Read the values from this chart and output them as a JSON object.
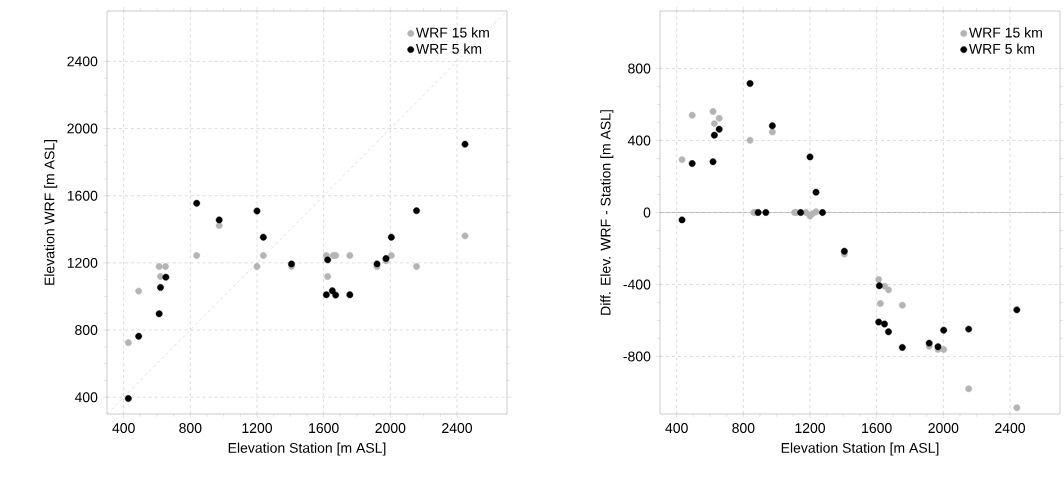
{
  "chart_data": [
    {
      "type": "scatter",
      "xlabel": "Elevation Station [m ASL]",
      "ylabel": "Elevation WRF [m ASL]",
      "xlim": [
        300,
        2700
      ],
      "ylim": [
        300,
        2700
      ],
      "xticks": [
        400,
        800,
        1200,
        1600,
        2000,
        2400
      ],
      "yticks": [
        400,
        800,
        1200,
        1600,
        2000,
        2400
      ],
      "grid": true,
      "legend": "top right",
      "series": [
        {
          "name": "WRF 15 km",
          "color": "#b4b4b4",
          "marker": "circle",
          "x": [
            428,
            490,
            613,
            651,
            621,
            838,
            973,
            1200,
            1238,
            1407,
            1616,
            1624,
            1658,
            1672,
            1757,
            1920,
            1974,
            2006,
            2157,
            2448
          ],
          "values": [
            725,
            1032,
            1178,
            1178,
            1119,
            1244,
            1422,
            1178,
            1244,
            1178,
            1244,
            1119,
            1244,
            1244,
            1244,
            1178,
            1212,
            1244,
            1178,
            1361
          ]
        },
        {
          "name": "WRF 5 km",
          "color": "#000000",
          "marker": "circle",
          "x": [
            428,
            490,
            613,
            621,
            653,
            838,
            973,
            1200,
            1238,
            1407,
            1616,
            1624,
            1652,
            1672,
            1757,
            1920,
            1974,
            2006,
            2157,
            2448
          ],
          "values": [
            392,
            763,
            897,
            1054,
            1115,
            1555,
            1456,
            1509,
            1353,
            1194,
            1010,
            1218,
            1034,
            1008,
            1010,
            1194,
            1226,
            1353,
            1511,
            1907
          ]
        },
        {
          "type": "line",
          "color": "#b4b4b4",
          "line_style": "dashed",
          "marker": "none",
          "x": [
            300,
            2700
          ],
          "values": [
            300,
            2700
          ]
        }
      ]
    },
    {
      "type": "scatter",
      "xlabel": "Elevation Station [m ASL]",
      "ylabel": "Diff. Elev. WRF - Station [m ASL]",
      "xlim": [
        300,
        2700
      ],
      "ylim": [
        -1120,
        1120
      ],
      "xticks": [
        400,
        800,
        1200,
        1600,
        2000,
        2400
      ],
      "yticks": [
        -800,
        -400,
        0,
        400,
        800
      ],
      "grid": true,
      "legend": "top right",
      "ref_lines": [
        {
          "axis": "y",
          "value": 0,
          "color": "#808080"
        }
      ],
      "series": [
        {
          "name": "WRF 15 km",
          "color": "#b4b4b4",
          "marker": "circle",
          "x": [
            432,
            493,
            618,
            626,
            655,
            840,
            863,
            875,
            974,
            1107,
            1119,
            1176,
            1200,
            1216,
            1236,
            1406,
            1612,
            1622,
            1647,
            1671,
            1754,
            1915,
            1968,
            2002,
            2152,
            2441
          ],
          "values": [
            294,
            541,
            561,
            494,
            524,
            402,
            0,
            0,
            448,
            0,
            0,
            0,
            -20,
            -6,
            4,
            -231,
            -372,
            -506,
            -409,
            -430,
            -515,
            -743,
            -761,
            -761,
            -980,
            -1085
          ]
        },
        {
          "name": "WRF 5 km",
          "color": "#000000",
          "marker": "circle",
          "x": [
            432,
            493,
            618,
            626,
            655,
            840,
            889,
            935,
            974,
            1144,
            1200,
            1236,
            1275,
            1406,
            1616,
            1612,
            1647,
            1671,
            1754,
            1915,
            1968,
            2002,
            2152,
            2441
          ],
          "values": [
            -41,
            272,
            282,
            430,
            463,
            717,
            0,
            0,
            482,
            0,
            309,
            113,
            0,
            -215,
            -407,
            -609,
            -620,
            -663,
            -750,
            -726,
            -746,
            -654,
            -648,
            -541
          ]
        }
      ]
    }
  ]
}
